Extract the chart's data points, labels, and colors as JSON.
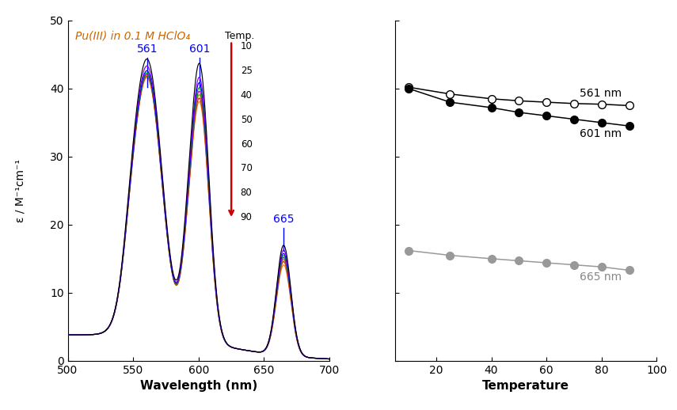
{
  "title_left": "Pu(III) in 0.1 M HClO₄",
  "xlabel_left": "Wavelength (nm)",
  "xlabel_right": "Temperature",
  "xlim_left": [
    500,
    700
  ],
  "ylim_both": [
    0,
    50
  ],
  "xlim_right": [
    5,
    100
  ],
  "temperatures": [
    10,
    25,
    40,
    50,
    60,
    70,
    80,
    90
  ],
  "temp_colors": [
    "#000000",
    "#7b00ff",
    "#0000ff",
    "#00aa00",
    "#aa00aa",
    "#888800",
    "#cc2200",
    "#ff7700"
  ],
  "right_temps": [
    10,
    25,
    40,
    50,
    60,
    70,
    80,
    90
  ],
  "right_561": [
    40.2,
    39.2,
    38.5,
    38.2,
    38.0,
    37.8,
    37.7,
    37.5
  ],
  "right_601": [
    40.0,
    38.0,
    37.2,
    36.5,
    36.0,
    35.5,
    35.0,
    34.5
  ],
  "right_665": [
    16.2,
    15.5,
    15.0,
    14.7,
    14.4,
    14.1,
    13.8,
    13.3
  ],
  "peak_561_vals": [
    40.2,
    39.2,
    38.5,
    38.2,
    38.0,
    37.8,
    37.7,
    37.5
  ],
  "peak_601_vals": [
    40.0,
    38.0,
    37.2,
    36.5,
    36.0,
    35.5,
    35.0,
    34.5
  ],
  "peak_665_vals": [
    16.2,
    15.5,
    15.0,
    14.7,
    14.4,
    14.1,
    13.8,
    13.3
  ]
}
